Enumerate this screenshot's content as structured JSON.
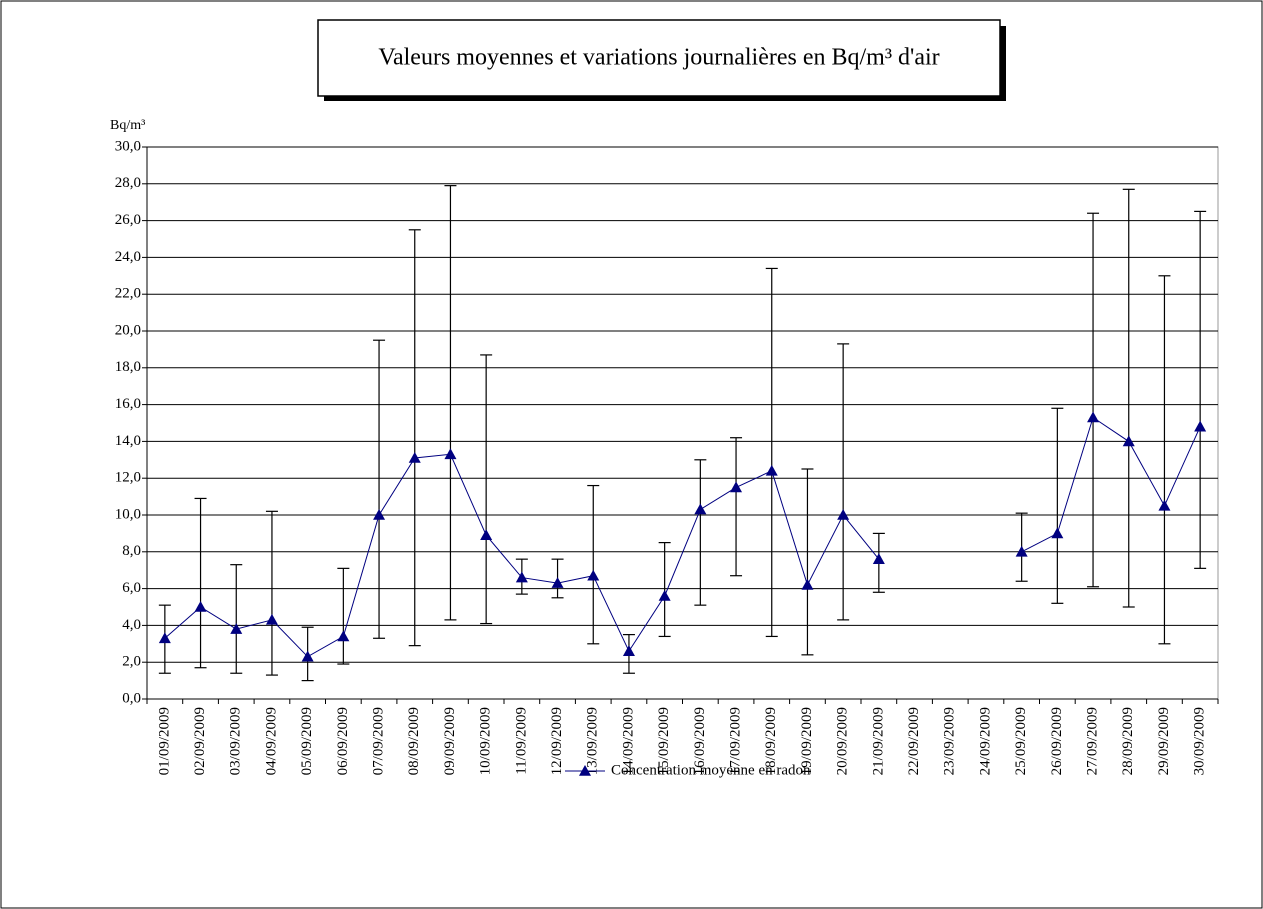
{
  "chart_data": {
    "type": "line",
    "title": "Valeurs moyennes et variations journalières en Bq/m³ d'air",
    "y_label": "Bq/m³",
    "categories": [
      "01/09/2009",
      "02/09/2009",
      "03/09/2009",
      "04/09/2009",
      "05/09/2009",
      "06/09/2009",
      "07/09/2009",
      "08/09/2009",
      "09/09/2009",
      "10/09/2009",
      "11/09/2009",
      "12/09/2009",
      "13/09/2009",
      "14/09/2009",
      "15/09/2009",
      "16/09/2009",
      "17/09/2009",
      "18/09/2009",
      "19/09/2009",
      "20/09/2009",
      "21/09/2009",
      "22/09/2009",
      "23/09/2009",
      "24/09/2009",
      "25/09/2009",
      "26/09/2009",
      "27/09/2009",
      "28/09/2009",
      "29/09/2009",
      "30/09/2009"
    ],
    "series": [
      {
        "name": "Concentration moyenne en radon",
        "color": "#000080",
        "values": [
          3.3,
          5.0,
          3.8,
          4.3,
          2.3,
          3.4,
          10.0,
          13.1,
          13.3,
          8.9,
          6.6,
          6.3,
          6.7,
          2.6,
          5.6,
          10.3,
          11.5,
          12.4,
          6.2,
          10.0,
          7.6,
          null,
          null,
          null,
          8.0,
          9.0,
          15.3,
          14.0,
          10.5,
          14.8
        ],
        "low": [
          1.4,
          1.7,
          1.4,
          1.3,
          1.0,
          1.9,
          3.3,
          2.9,
          4.3,
          4.1,
          5.7,
          5.5,
          3.0,
          1.4,
          3.4,
          5.1,
          6.7,
          3.4,
          2.4,
          4.3,
          5.8,
          null,
          null,
          null,
          6.4,
          5.2,
          6.1,
          5.0,
          3.0,
          7.1
        ],
        "high": [
          5.1,
          10.9,
          7.3,
          10.2,
          3.9,
          7.1,
          19.5,
          25.5,
          27.9,
          18.7,
          7.6,
          7.6,
          11.6,
          3.5,
          8.5,
          13.0,
          14.2,
          23.4,
          12.5,
          19.3,
          9.0,
          null,
          null,
          null,
          10.1,
          15.8,
          26.4,
          27.7,
          23.0,
          26.5
        ]
      }
    ],
    "ylim": [
      0,
      30
    ],
    "yticks": [
      {
        "value": 0,
        "label": "0,0"
      },
      {
        "value": 2,
        "label": "2,0"
      },
      {
        "value": 4,
        "label": "4,0"
      },
      {
        "value": 6,
        "label": "6,0"
      },
      {
        "value": 8,
        "label": "8,0"
      },
      {
        "value": 10,
        "label": "10,0"
      },
      {
        "value": 12,
        "label": "12,0"
      },
      {
        "value": 14,
        "label": "14,0"
      },
      {
        "value": 16,
        "label": "16,0"
      },
      {
        "value": 18,
        "label": "18,0"
      },
      {
        "value": 20,
        "label": "20,0"
      },
      {
        "value": 22,
        "label": "22,0"
      },
      {
        "value": 24,
        "label": "24,0"
      },
      {
        "value": 26,
        "label": "26,0"
      },
      {
        "value": 28,
        "label": "28,0"
      },
      {
        "value": 30,
        "label": "30,0"
      }
    ],
    "grid": true
  }
}
